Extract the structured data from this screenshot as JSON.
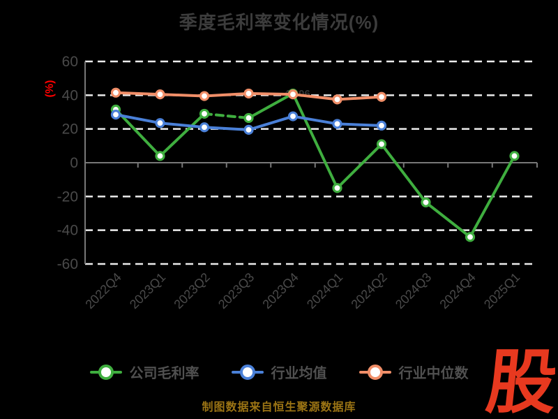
{
  "title": "季度毛利率变化情况(%)",
  "y_axis_label": "(%)",
  "caption": "制图数据来自恒生聚源数据库",
  "logo_text": "股",
  "colors": {
    "background": "#000000",
    "title": "#3c3c3c",
    "axis": "#787878",
    "gridline": "#ececec",
    "tick_label": "#4a4a4a",
    "legend_text": "#505050",
    "ylabel_red": "#ff0000",
    "caption_gold": "#9b7414",
    "logo_red": "#e8391f",
    "annotation": "#333333"
  },
  "chart_data": {
    "type": "line",
    "title": "季度毛利率变化情况(%)",
    "xlabel": "",
    "ylabel": "(%)",
    "ylim": [
      -60,
      60
    ],
    "yticks": [
      60,
      40,
      20,
      0,
      -20,
      -40,
      -60
    ],
    "grid": "horizontal-dashed",
    "legend_position": "bottom",
    "categories": [
      "2022Q4",
      "2023Q1",
      "2023Q2",
      "2023Q3",
      "2023Q4",
      "2024Q1",
      "2024Q2",
      "2024Q3",
      "2024Q4",
      "2025Q1"
    ],
    "series": [
      {
        "name": "公司毛利率",
        "color": "#3fae3f",
        "values": [
          31.5,
          4,
          29,
          26.5,
          41,
          -15,
          11,
          -23.5,
          -44,
          4
        ],
        "dashed_segment": [
          2,
          3
        ]
      },
      {
        "name": "行业均值",
        "color": "#4a80d8",
        "values": [
          28.5,
          23.5,
          21,
          19.5,
          27.5,
          23,
          22,
          null,
          null,
          null
        ]
      },
      {
        "name": "行业中位数",
        "color": "#f08e68",
        "values": [
          41.5,
          40.5,
          39.5,
          41,
          40.5,
          37.5,
          39,
          null,
          null,
          null
        ]
      }
    ],
    "annotations": [
      {
        "text": "41.06",
        "category": "2023Q4",
        "value": 41,
        "color": "#333333"
      }
    ]
  }
}
